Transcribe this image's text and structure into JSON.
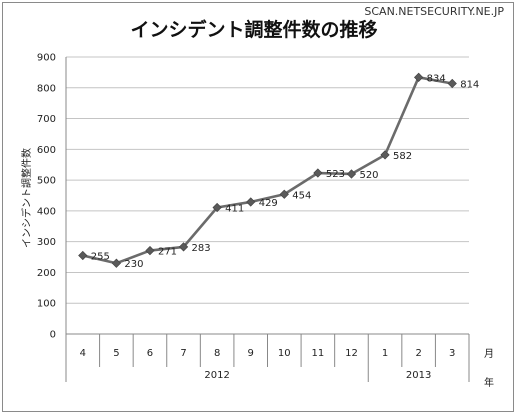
{
  "watermark": "SCAN.NETSECURITY.NE.JP",
  "chart_data": {
    "type": "line",
    "title": "インシデント調整件数の推移",
    "ylabel": "インシデント調整件数",
    "xlabel_unit_month": "月",
    "xlabel_unit_year": "年",
    "categories": [
      "4",
      "5",
      "6",
      "7",
      "8",
      "9",
      "10",
      "11",
      "12",
      "1",
      "2",
      "3"
    ],
    "year_groups": [
      {
        "label": "2012",
        "count": 9
      },
      {
        "label": "2013",
        "count": 3
      }
    ],
    "series": [
      {
        "values": [
          255,
          230,
          271,
          283,
          411,
          429,
          454,
          523,
          520,
          582,
          834,
          814
        ]
      }
    ],
    "data_labels": [
      "255",
      "230",
      "271",
      "283",
      "411",
      "429",
      "454",
      "523",
      "520",
      "582",
      "834",
      "814"
    ],
    "yticks": [
      "0",
      "100",
      "200",
      "300",
      "400",
      "500",
      "600",
      "700",
      "800",
      "900"
    ],
    "ylim": [
      0,
      900
    ],
    "grid": true,
    "line_color": "#6b6b6b",
    "marker_color": "#5a5a5a"
  }
}
